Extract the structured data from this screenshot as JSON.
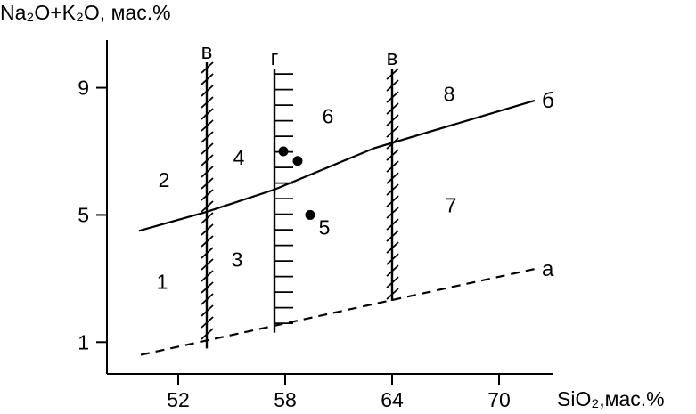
{
  "chart_data": {
    "type": "scatter",
    "xlabel": "SiO₂,мас.%",
    "ylabel": "Na₂O+K₂O, мас.%",
    "xlim": [
      48.0,
      73.0
    ],
    "ylim": [
      0.0,
      10.5
    ],
    "x_ticks": [
      {
        "value": 52,
        "label": "52"
      },
      {
        "value": 58,
        "label": "58"
      },
      {
        "value": 64,
        "label": "64"
      },
      {
        "value": 70,
        "label": "70"
      }
    ],
    "y_ticks": [
      {
        "value": 9,
        "label": "9"
      },
      {
        "value": 5,
        "label": "5"
      },
      {
        "value": 1,
        "label": "1"
      }
    ],
    "boundaries": [
      {
        "label": "б",
        "style": "solid",
        "points": [
          [
            49.8,
            4.5
          ],
          [
            53.6,
            5.1
          ],
          [
            57.4,
            5.8
          ],
          [
            63.0,
            7.1
          ],
          [
            72.0,
            8.6
          ]
        ]
      },
      {
        "label": "а",
        "style": "dashed",
        "points": [
          [
            49.9,
            0.6
          ],
          [
            72.0,
            3.3
          ]
        ]
      }
    ],
    "verticals": [
      {
        "label": "в",
        "x": 53.6,
        "y_from": 0.8,
        "y_to": 9.8,
        "style": "hatched"
      },
      {
        "label": "г",
        "x": 57.4,
        "y_from": 1.3,
        "y_to": 9.6,
        "style": "ticked"
      },
      {
        "label": "в",
        "x": 64.0,
        "y_from": 2.3,
        "y_to": 9.6,
        "style": "hatched"
      }
    ],
    "fields": [
      {
        "label": "1",
        "x": 51.1,
        "y": 2.9
      },
      {
        "label": "2",
        "x": 51.2,
        "y": 6.1
      },
      {
        "label": "3",
        "x": 55.3,
        "y": 3.6
      },
      {
        "label": "4",
        "x": 55.4,
        "y": 6.8
      },
      {
        "label": "5",
        "x": 60.2,
        "y": 4.6
      },
      {
        "label": "6",
        "x": 60.4,
        "y": 8.1
      },
      {
        "label": "7",
        "x": 67.3,
        "y": 5.3
      },
      {
        "label": "8",
        "x": 67.2,
        "y": 8.8
      }
    ],
    "points": [
      {
        "x": 57.9,
        "y": 7.0
      },
      {
        "x": 58.7,
        "y": 6.7
      },
      {
        "x": 59.4,
        "y": 5.0
      }
    ]
  }
}
